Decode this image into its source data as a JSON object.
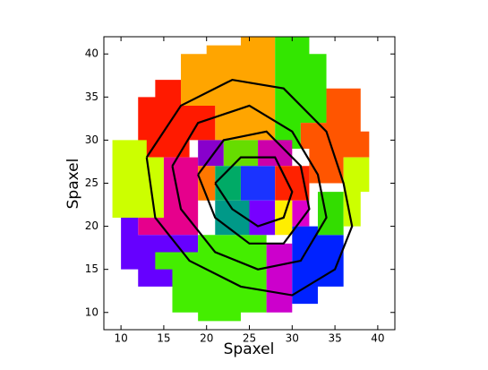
{
  "chart_data": {
    "type": "binmap",
    "xlabel": "Spaxel",
    "ylabel": "Spaxel",
    "xlim": [
      8,
      42
    ],
    "ylim": [
      8,
      42
    ],
    "xticks": [
      10,
      15,
      20,
      25,
      30,
      35,
      40
    ],
    "yticks": [
      10,
      15,
      20,
      25,
      30,
      35,
      40
    ],
    "grid": false,
    "regions": [
      {
        "color": "#ffa500",
        "x": [
          17,
          17,
          20,
          20,
          24,
          24,
          28,
          28,
          21,
          21,
          17
        ],
        "y": [
          37,
          40,
          40,
          41,
          41,
          42,
          42,
          30,
          30,
          34,
          34
        ]
      },
      {
        "color": "#33e600",
        "x": [
          28,
          32,
          32,
          34,
          34,
          31,
          31,
          28
        ],
        "y": [
          42,
          42,
          40,
          40,
          32,
          32,
          29,
          29
        ]
      },
      {
        "color": "#ff1a00",
        "x": [
          12,
          12,
          14,
          14,
          17,
          17,
          21,
          21,
          18,
          18,
          12
        ],
        "y": [
          30,
          35,
          35,
          37,
          37,
          34,
          34,
          30,
          30,
          28,
          28
        ]
      },
      {
        "color": "#ff5500",
        "x": [
          31,
          31,
          34,
          34,
          38,
          38,
          39,
          39,
          36,
          36,
          32,
          32
        ],
        "y": [
          29,
          32,
          32,
          36,
          36,
          31,
          31,
          28,
          28,
          25,
          25,
          29
        ]
      },
      {
        "color": "#ccff00",
        "x": [
          9,
          9,
          13,
          13,
          15,
          15
        ],
        "y": [
          21,
          30,
          30,
          28,
          28,
          21
        ]
      },
      {
        "color": "#e6008c",
        "x": [
          15,
          15,
          19,
          19,
          12,
          12
        ],
        "y": [
          21,
          28,
          28,
          19,
          19,
          21
        ]
      },
      {
        "color": "#6600ff",
        "x": [
          10,
          10,
          12,
          12,
          19,
          19,
          12,
          12,
          10
        ],
        "y": [
          17,
          21,
          21,
          19,
          19,
          13,
          13,
          15,
          15
        ]
      },
      {
        "color": "#44ee00",
        "x": [
          16,
          16,
          14,
          14,
          19,
          19,
          27,
          27,
          24,
          24,
          19,
          19
        ],
        "y": [
          10,
          15,
          15,
          17,
          17,
          19,
          19,
          10,
          10,
          9,
          9,
          10
        ]
      },
      {
        "color": "#cc00cc",
        "x": [
          27,
          27,
          30,
          30
        ],
        "y": [
          10,
          18,
          18,
          10
        ]
      },
      {
        "color": "#0022ff",
        "x": [
          30,
          30,
          33,
          33,
          36,
          36,
          33,
          33
        ],
        "y": [
          11,
          20,
          20,
          19,
          19,
          13,
          13,
          11
        ]
      },
      {
        "color": "#33dd00",
        "x": [
          33,
          33,
          36,
          36
        ],
        "y": [
          19,
          24,
          24,
          19
        ]
      },
      {
        "color": "#ccff00",
        "x": [
          36,
          36,
          39,
          39,
          38,
          38
        ],
        "y": [
          20,
          28,
          28,
          24,
          24,
          20
        ]
      },
      {
        "color": "#8800cc",
        "x": [
          19,
          22,
          22,
          19
        ],
        "y": [
          27,
          27,
          30,
          30
        ]
      },
      {
        "color": "#66dd00",
        "x": [
          22,
          26,
          26,
          22
        ],
        "y": [
          27,
          27,
          30,
          30
        ]
      },
      {
        "color": "#009988",
        "x": [
          21,
          25,
          25,
          21
        ],
        "y": [
          19,
          19,
          23,
          23
        ]
      },
      {
        "color": "#1a33ff",
        "x": [
          24,
          28,
          28,
          24
        ],
        "y": [
          23,
          23,
          27,
          27
        ]
      },
      {
        "color": "#cc00aa",
        "x": [
          26,
          30,
          30,
          26
        ],
        "y": [
          27,
          27,
          30,
          30
        ]
      },
      {
        "color": "#ff2200",
        "x": [
          28,
          32,
          32,
          28
        ],
        "y": [
          23,
          23,
          27,
          27
        ]
      },
      {
        "color": "#ff7700",
        "x": [
          19,
          21,
          21,
          19
        ],
        "y": [
          23,
          23,
          27,
          27
        ]
      },
      {
        "color": "#00aa66",
        "x": [
          21,
          24,
          24,
          21
        ],
        "y": [
          23,
          23,
          27,
          27
        ]
      },
      {
        "color": "#7700ff",
        "x": [
          25,
          28,
          28,
          25
        ],
        "y": [
          19,
          19,
          23,
          23
        ]
      },
      {
        "color": "#dd00cc",
        "x": [
          30,
          32,
          32,
          30
        ],
        "y": [
          20,
          20,
          23,
          23
        ]
      },
      {
        "color": "#ffee00",
        "x": [
          28,
          30,
          30,
          28
        ],
        "y": [
          19,
          19,
          23,
          23
        ]
      }
    ],
    "contour_color": "#000000",
    "contours": [
      {
        "x": [
          13,
          17,
          23,
          29,
          34,
          36,
          37,
          35,
          30,
          24,
          18,
          14,
          13
        ],
        "y": [
          28,
          34,
          37,
          36,
          31,
          25,
          20,
          15,
          12,
          13,
          16,
          21,
          28
        ]
      },
      {
        "x": [
          16,
          19,
          25,
          30,
          33,
          34,
          31,
          26,
          21,
          17,
          16
        ],
        "y": [
          27,
          32,
          34,
          31,
          26,
          21,
          16,
          15,
          17,
          22,
          27
        ]
      },
      {
        "x": [
          19,
          22,
          27,
          31,
          32,
          29,
          25,
          21,
          19
        ],
        "y": [
          26,
          30,
          31,
          27,
          22,
          18,
          18,
          21,
          26
        ]
      },
      {
        "x": [
          21,
          24,
          28,
          30,
          29,
          26,
          23,
          21
        ],
        "y": [
          25,
          28,
          28,
          24,
          21,
          20,
          22,
          25
        ]
      }
    ]
  }
}
